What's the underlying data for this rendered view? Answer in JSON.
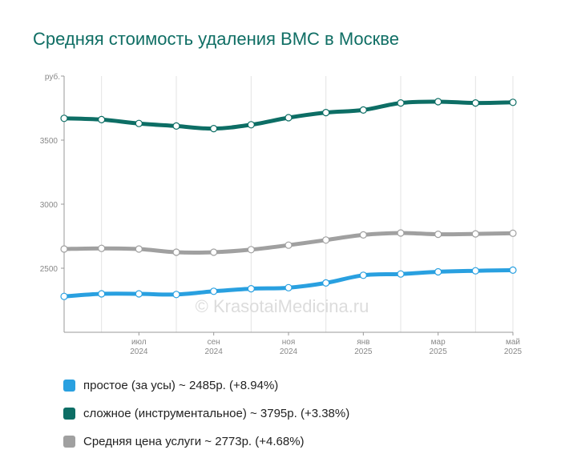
{
  "title": "Средняя стоимость удаления ВМС в Москве",
  "watermark": "© KrasotaiMedicina.ru",
  "colors": {
    "title": "#0f6e64",
    "axis": "#999999",
    "grid": "#e3e3e3",
    "tick_text": "#888888",
    "point_fill": "#ffffff"
  },
  "legend": [
    {
      "label": "простое (за усы) ~ 2485р. (+8.94%)",
      "color": "#29a0e0"
    },
    {
      "label": "сложное (инструментальное) ~ 3795р. (+3.38%)",
      "color": "#0d6e65"
    },
    {
      "label": "Средняя цена услуги ~ 2773р. (+4.68%)",
      "color": "#a0a0a0"
    }
  ],
  "chart_data": {
    "type": "line",
    "title": "Средняя стоимость удаления ВМС в Москве",
    "ylabel": "руб.",
    "ylim": [
      2000,
      4000
    ],
    "y_ticks": [
      "2500",
      "3000",
      "3500"
    ],
    "x": [
      "2024-05",
      "2024-06",
      "2024-07",
      "2024-08",
      "2024-09",
      "2024-10",
      "2024-11",
      "2024-12",
      "2025-01",
      "2025-02",
      "2025-03",
      "2025-04",
      "2025-05"
    ],
    "x_ticks": [
      {
        "month": "июл",
        "year": "2024"
      },
      {
        "month": "сен",
        "year": "2024"
      },
      {
        "month": "ноя",
        "year": "2024"
      },
      {
        "month": "янв",
        "year": "2025"
      },
      {
        "month": "мар",
        "year": "2025"
      },
      {
        "month": "май",
        "year": "2025"
      }
    ],
    "grid": true,
    "legend_position": "bottom",
    "series": [
      {
        "name": "сложное (инструментальное)",
        "color": "#0d6e65",
        "values": [
          3670,
          3660,
          3630,
          3610,
          3590,
          3620,
          3675,
          3715,
          3735,
          3790,
          3800,
          3790,
          3795
        ]
      },
      {
        "name": "Средняя цена услуги",
        "color": "#a0a0a0",
        "values": [
          2650,
          2655,
          2650,
          2625,
          2625,
          2645,
          2680,
          2720,
          2760,
          2775,
          2765,
          2768,
          2773
        ]
      },
      {
        "name": "простое (за усы)",
        "color": "#29a0e0",
        "values": [
          2280,
          2300,
          2300,
          2295,
          2320,
          2340,
          2348,
          2385,
          2445,
          2455,
          2472,
          2480,
          2485
        ]
      }
    ]
  }
}
